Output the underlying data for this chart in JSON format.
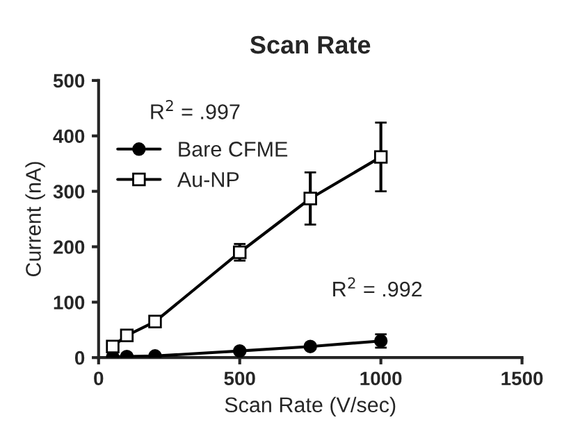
{
  "chart_data": {
    "type": "line",
    "title": "Scan Rate",
    "xlabel": "Scan Rate (V/sec)",
    "ylabel": "Current (nA)",
    "x": [
      50,
      100,
      200,
      500,
      750,
      1000
    ],
    "series": [
      {
        "name": "Bare CFME",
        "color": "#000000",
        "marker": "circle",
        "values": [
          1,
          2,
          3,
          12,
          20,
          30
        ],
        "errors": [
          null,
          null,
          null,
          3,
          4,
          12
        ]
      },
      {
        "name": "Au-NP",
        "color": "#000000",
        "marker": "square",
        "values": [
          20,
          40,
          65,
          190,
          287,
          362
        ],
        "errors": [
          null,
          null,
          null,
          15,
          47,
          62
        ]
      }
    ],
    "annotations": [
      "R$^{2}$ = .997",
      "R$^{2}$ = .992"
    ],
    "xlim": [
      0,
      1500
    ],
    "xticks": [
      0,
      500,
      1000,
      1500
    ],
    "ylim": [
      0,
      500
    ],
    "yticks": [
      0,
      100,
      200,
      300,
      400,
      500
    ],
    "legend": "top left",
    "grid": false
  }
}
